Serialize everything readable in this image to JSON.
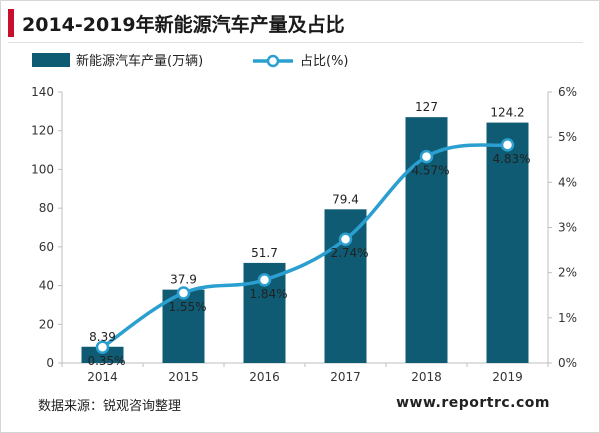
{
  "title": "2014-2019年新能源汽车产量及占比",
  "chart_data": {
    "type": "bar",
    "categories": [
      "2014",
      "2015",
      "2016",
      "2017",
      "2018",
      "2019"
    ],
    "series": [
      {
        "name": "新能源汽车产量(万辆)",
        "type": "bar",
        "axis": "left",
        "color": "#0f5b73",
        "values": [
          8.39,
          37.9,
          51.7,
          79.4,
          127,
          124.2
        ],
        "labels": [
          "8.39",
          "37.9",
          "51.7",
          "79.4",
          "127",
          "124.2"
        ]
      },
      {
        "name": "占比(%)",
        "type": "line",
        "axis": "right",
        "color": "#2a9fd0",
        "values": [
          0.35,
          1.55,
          1.84,
          2.74,
          4.57,
          4.83
        ],
        "labels": [
          "0.35%",
          "1.55%",
          "1.84%",
          "2.74%",
          "4.57%",
          "4.83%"
        ]
      }
    ],
    "y_left": {
      "min": 0,
      "max": 140,
      "ticks": [
        "0",
        "20",
        "40",
        "60",
        "80",
        "100",
        "120",
        "140"
      ]
    },
    "y_right": {
      "min": 0,
      "max": 6,
      "ticks": [
        "0%",
        "1%",
        "2%",
        "3%",
        "4%",
        "5%",
        "6%"
      ]
    },
    "grid": false,
    "legend": "top-left"
  },
  "footer": {
    "source": "数据来源：锐观咨询整理",
    "website": "www.reportrc.com"
  },
  "colors": {
    "accent": "#c8102e",
    "bar": "#0f5b73",
    "line": "#2a9fd0"
  }
}
